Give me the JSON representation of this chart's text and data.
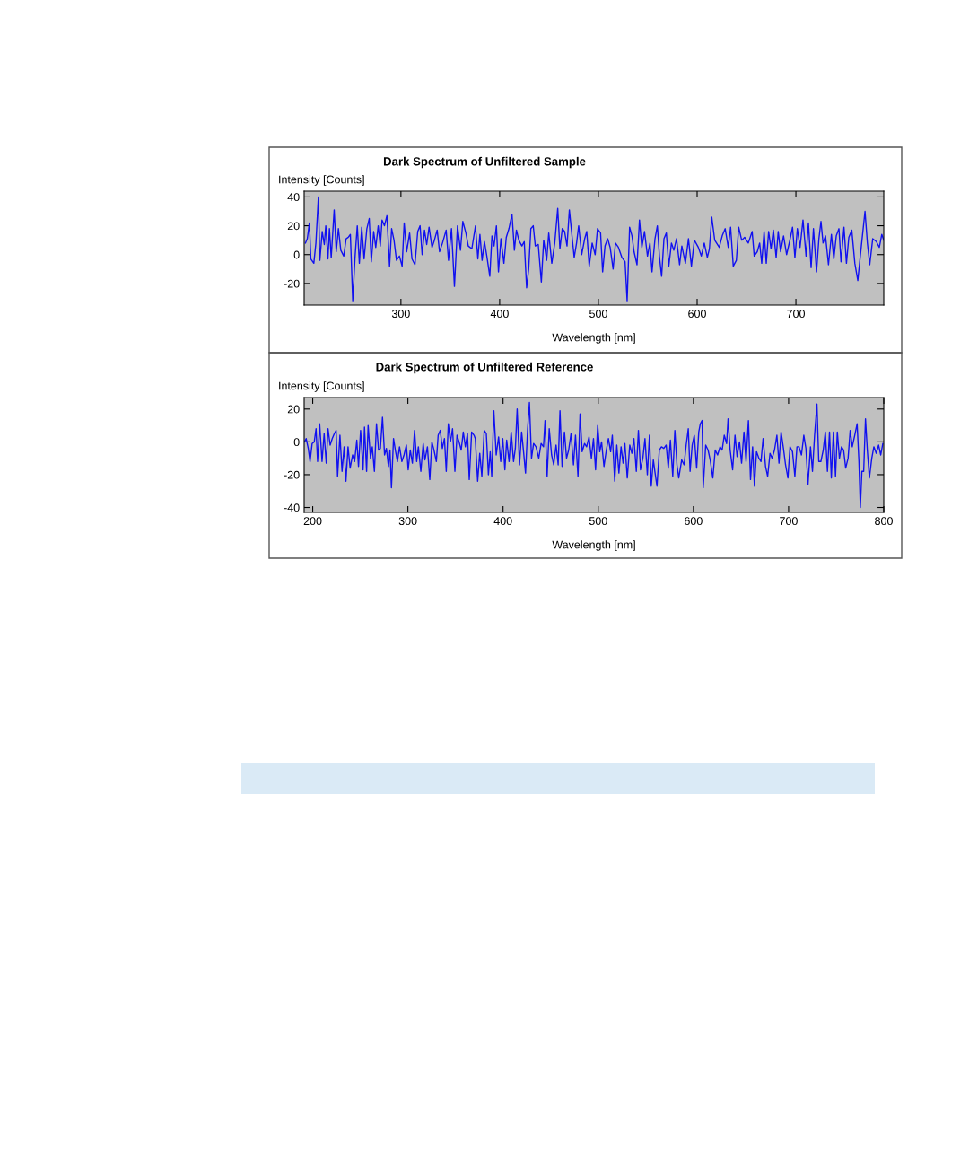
{
  "chart_data": [
    {
      "type": "line",
      "title": "Dark Spectrum of Unfiltered Sample",
      "xlabel": "Wavelength [nm]",
      "ylabel": "Intensity [Counts]",
      "grid": false,
      "xlim": [
        202,
        789
      ],
      "ylim": [
        -35,
        44
      ],
      "xticks": [
        300,
        400,
        500,
        600,
        700
      ],
      "yticks": [
        -20,
        0,
        20,
        40
      ],
      "series": [
        {
          "color": "#1010f0",
          "x": [
            203.3,
            205.2,
            207.3,
            208.8,
            211.8,
            213.9,
            216.4,
            217.9,
            220.3,
            222.4,
            223.9,
            226.1,
            227.6,
            229.4,
            232.4,
            234.5,
            236.7,
            239.1,
            242.1,
            244.5,
            246.7,
            248.8,
            251.2,
            253.6,
            255.8,
            257.9,
            260.3,
            262.7,
            265.5,
            267.9,
            270,
            272.4,
            274.5,
            277,
            279.1,
            280.9,
            283.3,
            285.8,
            288.5,
            290.6,
            293,
            295.5,
            298.5,
            301.2,
            303.3,
            305.8,
            308.8,
            311.2,
            314.2,
            317,
            319.4,
            321.5,
            323.9,
            326.1,
            328.5,
            331.5,
            333.9,
            336.7,
            339.1,
            342.1,
            345.8,
            348.2,
            351.2,
            354.2,
            357.3,
            360.3,
            362.7,
            365.8,
            368.2,
            371.8,
            375.5,
            377.9,
            380,
            382.2,
            384.6,
            387,
            390,
            392.2,
            394.3,
            396.7,
            398.8,
            401.3,
            404.3,
            406.7,
            409.4,
            412.5,
            414.9,
            417,
            419.4,
            422.5,
            424.9,
            427.3,
            429.4,
            431.6,
            434,
            436.1,
            439.1,
            442.2,
            444.6,
            447.6,
            449.7,
            452.8,
            455.8,
            458.8,
            461,
            463.4,
            465.8,
            468.2,
            470.6,
            473.1,
            475.5,
            477.9,
            480,
            483.1,
            486.1,
            488.2,
            490.7,
            493.7,
            496.7,
            499.1,
            502.2,
            504.3,
            506.7,
            509.4,
            511.9,
            514.9,
            517.3,
            520.3,
            523.8,
            527,
            529.1,
            531.6,
            534,
            536.1,
            539.1,
            541.6,
            544,
            546.7,
            549.7,
            552.2,
            554.3,
            557.3,
            559.7,
            561.9,
            564,
            566.4,
            568.8,
            571.3,
            574,
            576.4,
            579.1,
            582.2,
            584.5,
            588.1,
            591.2,
            594.2,
            597.2,
            601.2,
            604.2,
            607.2,
            610.3,
            612.4,
            614.8,
            617.8,
            622.4,
            625.4,
            628.4,
            631.5,
            633.9,
            636.6,
            639.7,
            642.1,
            645.1,
            648.1,
            651.8,
            655.7,
            657.8,
            660.9,
            663.3,
            665.4,
            667.8,
            670,
            672.4,
            674.8,
            677.2,
            680,
            682.1,
            684.5,
            687.5,
            690.6,
            693.6,
            696.6,
            699,
            701.5,
            704.2,
            707.2,
            710.3,
            712.7,
            715.4,
            717.8,
            720.9,
            723.3,
            725.4,
            727.5,
            730,
            733,
            736,
            738.4,
            740.9,
            743.6,
            745.7,
            748.7,
            751.2,
            753.6,
            756.6,
            759.7,
            762.7,
            766.3,
            770,
            772.4,
            774.8,
            777.8,
            781.5,
            784.5,
            787,
            789
          ],
          "values": [
            8,
            11,
            22,
            -3,
            -6,
            8,
            40,
            -4,
            16,
            7,
            20,
            -3,
            18,
            -2,
            31,
            2,
            18,
            3,
            -1,
            11,
            12,
            14,
            -32,
            -1,
            20,
            -6,
            19,
            -3,
            18,
            25,
            -5,
            16,
            5,
            20,
            6,
            24,
            20,
            27,
            -8,
            18,
            10,
            -4,
            -1,
            -8,
            22,
            2,
            15,
            -3,
            -7,
            16,
            20,
            0,
            17,
            7,
            19,
            5,
            10,
            17,
            2,
            8,
            17,
            -4,
            18,
            -22,
            20,
            3,
            23,
            15,
            6,
            4,
            20,
            -3,
            14,
            -4,
            9,
            -1,
            -15,
            13,
            6,
            20,
            -12,
            11,
            -6,
            12,
            18,
            28,
            3,
            17,
            10,
            6,
            9,
            -23,
            -10,
            18,
            20,
            6,
            7,
            -19,
            10,
            -4,
            15,
            -6,
            8,
            32,
            4,
            18,
            16,
            6,
            31,
            14,
            -2,
            8,
            20,
            0,
            11,
            16,
            -8,
            8,
            0,
            18,
            15,
            -12,
            6,
            11,
            5,
            -10,
            8,
            5,
            -2,
            -5,
            -32,
            19,
            13,
            2,
            -7,
            24,
            5,
            16,
            -1,
            8,
            -12,
            11,
            20,
            -2,
            -15,
            11,
            15,
            -8,
            8,
            3,
            11,
            -7,
            6,
            -6,
            11,
            -8,
            10,
            5,
            -1,
            8,
            -2,
            4,
            26,
            10,
            5,
            13,
            18,
            5,
            19,
            -8,
            -4,
            19,
            10,
            12,
            8,
            16,
            -1,
            2,
            8,
            -6,
            16,
            -6,
            16,
            4,
            17,
            -2,
            16,
            2,
            13,
            0,
            9,
            19,
            -2,
            18,
            5,
            24,
            -1,
            22,
            -9,
            18,
            -12,
            11,
            23,
            8,
            13,
            -7,
            14,
            -3,
            13,
            18,
            -5,
            19,
            -6,
            12,
            17,
            -6,
            -18,
            6,
            30,
            8,
            -7,
            11,
            9,
            5,
            14,
            10
          ]
        }
      ]
    },
    {
      "type": "line",
      "title": "Dark Spectrum of Unfiltered Reference",
      "xlabel": "Wavelength [nm]",
      "ylabel": "Intensity [Counts]",
      "grid": false,
      "xlim": [
        191,
        800
      ],
      "ylim": [
        -43,
        27
      ],
      "xticks": [
        200,
        300,
        400,
        500,
        600,
        700,
        800
      ],
      "yticks": [
        -40,
        -20,
        0,
        20
      ],
      "series": [
        {
          "color": "#1010f0",
          "x": [
            191.5,
            193.1,
            195.3,
            197.2,
            199.4,
            201.6,
            203.5,
            205.1,
            207.3,
            209.8,
            212,
            214.2,
            216.1,
            218.3,
            220.5,
            222.7,
            224.6,
            226.1,
            228.6,
            230.8,
            233,
            234.9,
            237.1,
            239.3,
            241.9,
            244,
            246.3,
            248.1,
            250.3,
            252.9,
            254.4,
            256.6,
            258.2,
            260.7,
            262.6,
            264.8,
            267,
            269.2,
            271.1,
            273.3,
            275.5,
            277.4,
            279.6,
            281.2,
            282.7,
            284.9,
            286.8,
            289,
            291.2,
            293.7,
            295.9,
            298.4,
            300.3,
            302.5,
            304.7,
            307,
            309.2,
            311,
            313.6,
            316.1,
            317.9,
            320.5,
            323,
            325.2,
            327.4,
            329.9,
            331.8,
            334,
            336.2,
            338.4,
            340.3,
            342.5,
            344.7,
            346.9,
            349.4,
            351.6,
            353.8,
            356,
            358.2,
            360.4,
            362.6,
            364.5,
            367,
            369.5,
            370.8,
            373.3,
            375.5,
            377.7,
            380.2,
            382.4,
            384.6,
            386.5,
            388.1,
            390.3,
            392.8,
            395.3,
            397.5,
            399.7,
            401.9,
            403.8,
            406.3,
            408.5,
            411,
            412.9,
            414.8,
            417.3,
            419.5,
            421.7,
            423.6,
            425.8,
            427.7,
            429.9,
            432.1,
            434.6,
            437.5,
            440,
            442.5,
            444.1,
            446.3,
            448.5,
            451,
            453.2,
            455.7,
            457.9,
            459.8,
            462,
            464.5,
            466.7,
            468.9,
            471.4,
            474,
            476.1,
            478.7,
            480.9,
            483.1,
            485.6,
            487.8,
            490.3,
            492.8,
            495,
            497.2,
            499.4,
            501.6,
            503.5,
            506,
            508.5,
            510.7,
            513,
            514.8,
            517.3,
            519.5,
            521.7,
            524,
            526.1,
            528,
            530.5,
            533.1,
            535.3,
            537.5,
            540,
            542.2,
            544.4,
            546.9,
            549.1,
            551.6,
            553.8,
            555.7,
            557.9,
            559.5,
            561.7,
            564.2,
            566.4,
            568.9,
            571.4,
            573.6,
            575.8,
            578.3,
            580.5,
            582.7,
            584.6,
            587.7,
            590.2,
            592.4,
            594.6,
            596.5,
            598.7,
            600.9,
            603.4,
            605.6,
            607.2,
            609.1,
            610.3,
            612.9,
            615.4,
            617.6,
            620.4,
            622.9,
            625.4,
            628,
            630.2,
            632.4,
            634.9,
            636.4,
            638.6,
            641.2,
            643.7,
            645.9,
            648.4,
            650.6,
            653.1,
            655.3,
            657.8,
            660,
            662.2,
            664.1,
            666.3,
            668.8,
            671,
            673.2,
            675.8,
            678,
            680.5,
            682.7,
            685.2,
            687.7,
            689.9,
            692.1,
            694.6,
            696.8,
            699.3,
            701.5,
            704.1,
            706.6,
            708.8,
            711,
            713.5,
            716,
            718.2,
            720.4,
            723,
            725.1,
            727.3,
            729.8,
            731.7,
            733.9,
            736.4,
            738.6,
            740.8,
            743,
            744.9,
            747.1,
            749.3,
            751.2,
            753.4,
            755.6,
            757.8,
            760,
            762.5,
            764.7,
            766.9,
            769.5,
            772,
            773.9,
            775.4,
            777,
            778.9,
            780.8,
            782.7,
            784.9,
            787.4,
            789.6,
            792.1,
            794.6,
            796.8,
            799
          ],
          "values": [
            0,
            2,
            -4,
            -12,
            -1,
            0,
            8,
            -12,
            11,
            -12,
            5,
            -13,
            8,
            -2,
            2,
            5,
            7,
            -21,
            4,
            -18,
            -3,
            -24,
            -3,
            -16,
            -8,
            -12,
            1,
            -15,
            7,
            -17,
            9,
            -18,
            10,
            -10,
            -3,
            -18,
            11,
            -5,
            -4,
            15,
            -8,
            -4,
            -15,
            -5,
            -28,
            2,
            -5,
            -12,
            -3,
            -12,
            -8,
            -2,
            -17,
            -5,
            -13,
            7,
            -12,
            -3,
            -18,
            -1,
            -11,
            -3,
            -23,
            0,
            -5,
            -12,
            4,
            7,
            -4,
            2,
            -18,
            11,
            0,
            8,
            -18,
            4,
            0,
            -5,
            6,
            -3,
            5,
            -23,
            6,
            4,
            2,
            -24,
            -7,
            -21,
            7,
            5,
            -20,
            -6,
            -21,
            19,
            -8,
            3,
            -12,
            2,
            -17,
            1,
            -12,
            6,
            -12,
            -4,
            20,
            -14,
            6,
            -7,
            -19,
            8,
            24,
            -10,
            -1,
            -3,
            -10,
            -1,
            -3,
            13,
            -21,
            8,
            -8,
            -14,
            -2,
            -14,
            19,
            -15,
            6,
            -10,
            -5,
            5,
            -14,
            4,
            -21,
            17,
            -6,
            -1,
            -3,
            3,
            -10,
            2,
            -17,
            10,
            -6,
            0,
            -15,
            -5,
            2,
            -6,
            4,
            -24,
            -2,
            -19,
            -3,
            -13,
            -1,
            -22,
            -2,
            -7,
            2,
            -18,
            7,
            -17,
            -10,
            2,
            -20,
            4,
            -27,
            -11,
            -18,
            -27,
            -5,
            -3,
            -4,
            -2,
            -16,
            1,
            -21,
            7,
            -14,
            -22,
            -11,
            -14,
            -2,
            8,
            -18,
            -2,
            4,
            -16,
            6,
            11,
            13,
            -28,
            -2,
            -5,
            -11,
            -22,
            -5,
            -8,
            -3,
            -5,
            4,
            -1,
            14,
            -5,
            -17,
            4,
            -9,
            0,
            -13,
            6,
            -12,
            13,
            -23,
            -3,
            -27,
            -6,
            -10,
            -12,
            2,
            -15,
            -21,
            -7,
            -10,
            -5,
            4,
            -13,
            6,
            -4,
            -14,
            -22,
            -3,
            -6,
            -21,
            -3,
            -3,
            -8,
            4,
            -4,
            -26,
            -3,
            -18,
            4,
            23,
            -12,
            -12,
            -5,
            6,
            -18,
            6,
            -22,
            6,
            -21,
            6,
            -10,
            -3,
            -5,
            -16,
            -10,
            7,
            -3,
            4,
            11,
            -12,
            -40,
            -18,
            -18,
            14,
            -5,
            -22,
            -10,
            -3,
            -7,
            -2,
            -8,
            -1
          ]
        }
      ]
    }
  ]
}
